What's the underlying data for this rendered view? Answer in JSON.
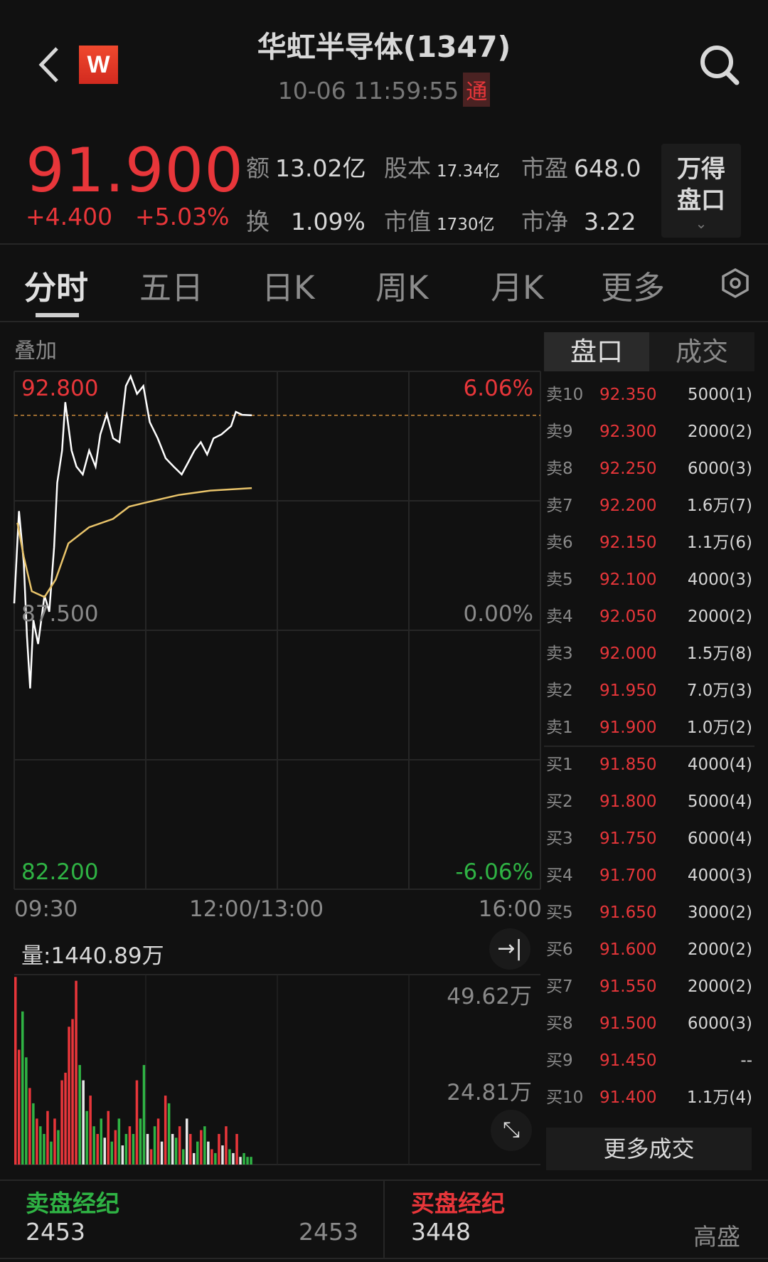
{
  "header": {
    "title": "华虹半导体(1347)",
    "time": "10-06 11:59:55",
    "connect_badge": "通",
    "logo": "W",
    "icons": {
      "back": "chevron-left-icon",
      "search": "search-icon"
    }
  },
  "quote": {
    "price": "91.900",
    "change": "+4.400",
    "change_pct": "+5.03%",
    "stats": [
      {
        "key": "额",
        "value": "13.02亿"
      },
      {
        "key": "股本",
        "value": "17.34亿"
      },
      {
        "key": "市盈",
        "value": "648.0"
      },
      {
        "key": "换",
        "value": "1.09%"
      },
      {
        "key": "市值",
        "value": "1730亿"
      },
      {
        "key": "市净",
        "value": "3.22"
      }
    ],
    "wind_button": {
      "line1": "万得",
      "line2": "盘口"
    }
  },
  "tabs": [
    {
      "label": "分时",
      "active": true
    },
    {
      "label": "五日"
    },
    {
      "label": "日K"
    },
    {
      "label": "周K"
    },
    {
      "label": "月K"
    },
    {
      "label": "更多"
    }
  ],
  "overlay_label": "叠加",
  "orderbook": {
    "tabs": [
      "盘口",
      "成交"
    ],
    "rows": [
      {
        "label": "卖10",
        "price": "92.350",
        "vol": "5000(1)"
      },
      {
        "label": "卖9",
        "price": "92.300",
        "vol": "2000(2)"
      },
      {
        "label": "卖8",
        "price": "92.250",
        "vol": "6000(3)"
      },
      {
        "label": "卖7",
        "price": "92.200",
        "vol": "1.6万(7)"
      },
      {
        "label": "卖6",
        "price": "92.150",
        "vol": "1.1万(6)"
      },
      {
        "label": "卖5",
        "price": "92.100",
        "vol": "4000(3)"
      },
      {
        "label": "卖4",
        "price": "92.050",
        "vol": "2000(2)"
      },
      {
        "label": "卖3",
        "price": "92.000",
        "vol": "1.5万(8)"
      },
      {
        "label": "卖2",
        "price": "91.950",
        "vol": "7.0万(3)"
      },
      {
        "label": "卖1",
        "price": "91.900",
        "vol": "1.0万(2)"
      },
      {
        "label": "买1",
        "price": "91.850",
        "vol": "4000(4)"
      },
      {
        "label": "买2",
        "price": "91.800",
        "vol": "5000(4)"
      },
      {
        "label": "买3",
        "price": "91.750",
        "vol": "6000(4)"
      },
      {
        "label": "买4",
        "price": "91.700",
        "vol": "4000(3)"
      },
      {
        "label": "买5",
        "price": "91.650",
        "vol": "3000(2)"
      },
      {
        "label": "买6",
        "price": "91.600",
        "vol": "2000(2)"
      },
      {
        "label": "买7",
        "price": "91.550",
        "vol": "2000(2)"
      },
      {
        "label": "买8",
        "price": "91.500",
        "vol": "6000(3)"
      },
      {
        "label": "买9",
        "price": "91.450",
        "vol": "--"
      },
      {
        "label": "买10",
        "price": "91.400",
        "vol": "1.1万(4)"
      }
    ],
    "more_trades": "更多成交"
  },
  "broker": {
    "sell_title": "卖盘经纪",
    "sell_id": "2453",
    "sell_name": "2453",
    "buy_title": "买盘经纪",
    "buy_id": "3448",
    "buy_name": "高盛"
  },
  "colors": {
    "up": "#e8363a",
    "down": "#2fb344",
    "price_line": "#ffffff",
    "avg_line": "#e8c36a",
    "background": "#111111"
  },
  "chart_data": [
    {
      "type": "line",
      "ylim": [
        82.2,
        92.8
      ],
      "prev_close": 87.5,
      "y_tick_labels": [
        "92.800",
        "87.500",
        "82.200"
      ],
      "pct_tick_labels": [
        "6.06%",
        "0.00%",
        "-6.06%"
      ],
      "x_tick_labels": [
        "09:30",
        "12:00/13:00",
        "16:00"
      ],
      "current_price_line": 91.9,
      "series": [
        {
          "key": "price",
          "points": [
            [
              "09:30",
              88.05
            ],
            [
              "09:33",
              89.94
            ],
            [
              "09:36",
              88.87
            ],
            [
              "09:38",
              87.38
            ],
            [
              "09:40",
              86.31
            ],
            [
              "09:42",
              87.71
            ],
            [
              "09:45",
              87.22
            ],
            [
              "09:49",
              88.21
            ],
            [
              "09:52",
              87.88
            ],
            [
              "09:55",
              89.2
            ],
            [
              "09:57",
              90.52
            ],
            [
              "10:00",
              91.18
            ],
            [
              "10:02",
              92.17
            ],
            [
              "10:06",
              91.18
            ],
            [
              "10:09",
              90.85
            ],
            [
              "10:13",
              90.69
            ],
            [
              "10:17",
              91.18
            ],
            [
              "10:21",
              90.85
            ],
            [
              "10:24",
              91.51
            ],
            [
              "10:28",
              91.92
            ],
            [
              "10:32",
              91.43
            ],
            [
              "10:36",
              91.35
            ],
            [
              "10:40",
              92.5
            ],
            [
              "10:43",
              92.7
            ],
            [
              "10:47",
              92.34
            ],
            [
              "10:51",
              92.5
            ],
            [
              "10:55",
              91.76
            ],
            [
              "11:00",
              91.43
            ],
            [
              "11:05",
              91.02
            ],
            [
              "11:10",
              90.85
            ],
            [
              "11:15",
              90.69
            ],
            [
              "11:19",
              90.93
            ],
            [
              "11:23",
              91.18
            ],
            [
              "11:27",
              91.35
            ],
            [
              "11:31",
              91.1
            ],
            [
              "11:35",
              91.43
            ],
            [
              "11:40",
              91.51
            ],
            [
              "11:46",
              91.68
            ],
            [
              "11:49",
              91.97
            ],
            [
              "11:53",
              91.91
            ],
            [
              "11:59",
              91.9
            ]
          ]
        },
        {
          "key": "average",
          "points": [
            [
              "09:32",
              89.7
            ],
            [
              "09:36",
              89.0
            ],
            [
              "09:41",
              88.3
            ],
            [
              "09:49",
              88.18
            ],
            [
              "09:56",
              88.54
            ],
            [
              "10:04",
              89.28
            ],
            [
              "10:17",
              89.61
            ],
            [
              "10:32",
              89.78
            ],
            [
              "10:42",
              90.03
            ],
            [
              "10:52",
              90.11
            ],
            [
              "11:13",
              90.27
            ],
            [
              "11:33",
              90.36
            ],
            [
              "11:59",
              90.41
            ]
          ]
        }
      ]
    },
    {
      "type": "bar",
      "title": "量:1440.89万",
      "y_tick_labels": [
        "49.62万",
        "24.81万"
      ],
      "ylim": [
        0,
        49.62
      ],
      "values": [
        49,
        30,
        40,
        28,
        20,
        16,
        12,
        10,
        8,
        14,
        6,
        12,
        9,
        22,
        24,
        36,
        38,
        48,
        26,
        22,
        14,
        18,
        10,
        8,
        12,
        7,
        14,
        6,
        9,
        12,
        5,
        8,
        10,
        8,
        22,
        12,
        26,
        8,
        4,
        10,
        12,
        6,
        18,
        16,
        8,
        7,
        10,
        4,
        12,
        8,
        3,
        6,
        9,
        10,
        6,
        4,
        3,
        8,
        5,
        10,
        4,
        3,
        8,
        2,
        3,
        2,
        2
      ],
      "colors": [
        "r",
        "r",
        "g",
        "g",
        "r",
        "g",
        "r",
        "g",
        "g",
        "r",
        "g",
        "r",
        "g",
        "r",
        "r",
        "r",
        "r",
        "r",
        "g",
        "w",
        "g",
        "r",
        "g",
        "r",
        "g",
        "w",
        "r",
        "g",
        "r",
        "g",
        "w",
        "g",
        "r",
        "g",
        "r",
        "g",
        "g",
        "w",
        "r",
        "g",
        "r",
        "w",
        "r",
        "g",
        "w",
        "g",
        "r",
        "g",
        "w",
        "r",
        "w",
        "g",
        "r",
        "g",
        "w",
        "r",
        "g",
        "r",
        "w",
        "r",
        "g",
        "w",
        "r",
        "w",
        "g",
        "g",
        "g"
      ]
    }
  ]
}
